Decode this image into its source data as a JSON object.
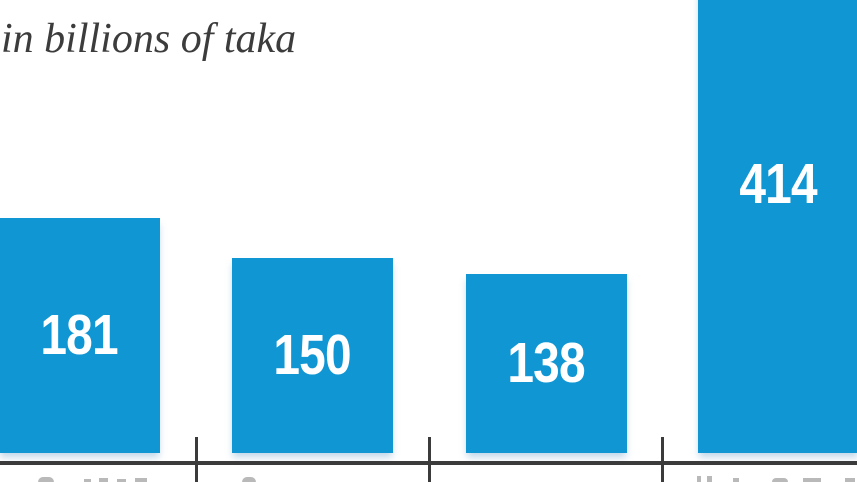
{
  "chart_data": {
    "type": "bar",
    "title": "",
    "subtitle": "in billions of taka",
    "categories": [
      "",
      "",
      "",
      ""
    ],
    "values": [
      181,
      150,
      138,
      414
    ],
    "value_labels": [
      "181",
      "150",
      "138",
      "414"
    ],
    "xlabel": "",
    "ylabel": "",
    "ylim_visible": [
      0,
      349
    ],
    "grid": false,
    "legend": "none",
    "value_label_position": "center-of-bar",
    "x_axis_tick_labels": "cropped out of frame (only faint letter tops visible below axis)",
    "subtitle_cropped_at_left": true,
    "tallest_bar_cropped_at_top": true,
    "colors": {
      "bar": "#1196d4",
      "value_text": "#ffffff",
      "axis": "#3b3b3b",
      "subtitle_text": "#3c3c3c",
      "background": "#ffffff"
    }
  }
}
